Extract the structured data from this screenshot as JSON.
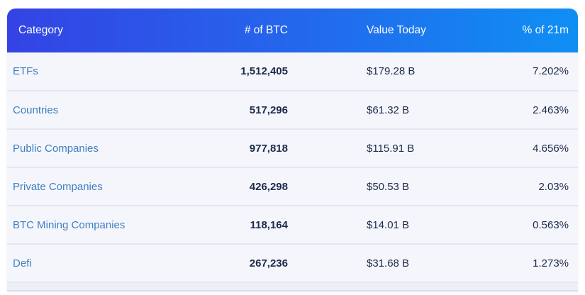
{
  "table": {
    "headers": {
      "category": "Category",
      "btc": "# of BTC",
      "value": "Value Today",
      "pct": "% of 21m"
    },
    "rows": [
      {
        "category": "ETFs",
        "btc": "1,512,405",
        "value": "$179.28 B",
        "pct": "7.202%"
      },
      {
        "category": "Countries",
        "btc": "517,296",
        "value": "$61.32 B",
        "pct": "2.463%"
      },
      {
        "category": "Public Companies",
        "btc": "977,818",
        "value": "$115.91 B",
        "pct": "4.656%"
      },
      {
        "category": "Private Companies",
        "btc": "426,298",
        "value": "$50.53 B",
        "pct": "2.03%"
      },
      {
        "category": "BTC Mining Companies",
        "btc": "118,164",
        "value": "$14.01 B",
        "pct": "0.563%"
      },
      {
        "category": "Defi",
        "btc": "267,236",
        "value": "$31.68 B",
        "pct": "1.273%"
      }
    ]
  },
  "colors": {
    "header_gradient_start": "#3443e4",
    "header_gradient_end": "#0f8ff4",
    "header_text": "#ffffff",
    "category_link": "#3e7fc1",
    "value_text": "#1b2a4a",
    "row_background": "#f5f6fc",
    "divider": "#e4e7f1"
  }
}
